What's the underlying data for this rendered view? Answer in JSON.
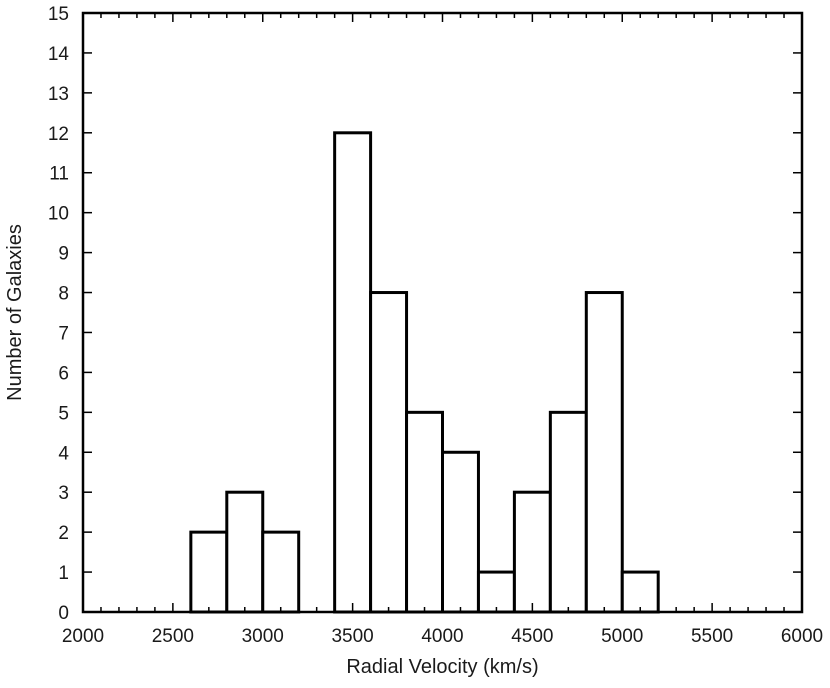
{
  "chart_data": {
    "type": "bar",
    "subtype": "histogram",
    "xlabel": "Radial Velocity (km/s)",
    "ylabel": "Number of Galaxies",
    "xlim": [
      2000,
      6000
    ],
    "ylim": [
      0,
      15
    ],
    "bin_width": 200,
    "x_ticks": [
      2000,
      2500,
      3000,
      3500,
      4000,
      4500,
      5000,
      5500,
      6000
    ],
    "y_ticks": [
      0,
      1,
      2,
      3,
      4,
      5,
      6,
      7,
      8,
      9,
      10,
      11,
      12,
      13,
      14,
      15
    ],
    "bins": [
      {
        "start": 2600,
        "end": 2800,
        "count": 2
      },
      {
        "start": 2800,
        "end": 3000,
        "count": 3
      },
      {
        "start": 3000,
        "end": 3200,
        "count": 2
      },
      {
        "start": 3400,
        "end": 3600,
        "count": 12
      },
      {
        "start": 3600,
        "end": 3800,
        "count": 8
      },
      {
        "start": 3800,
        "end": 4000,
        "count": 5
      },
      {
        "start": 4000,
        "end": 4200,
        "count": 4
      },
      {
        "start": 4200,
        "end": 4400,
        "count": 1
      },
      {
        "start": 4400,
        "end": 4600,
        "count": 3
      },
      {
        "start": 4600,
        "end": 4800,
        "count": 5
      },
      {
        "start": 4800,
        "end": 5000,
        "count": 8
      },
      {
        "start": 5000,
        "end": 5200,
        "count": 1
      }
    ],
    "grid": false,
    "colors": {
      "bar_fill": "#ffffff",
      "bar_stroke": "#000000"
    }
  }
}
